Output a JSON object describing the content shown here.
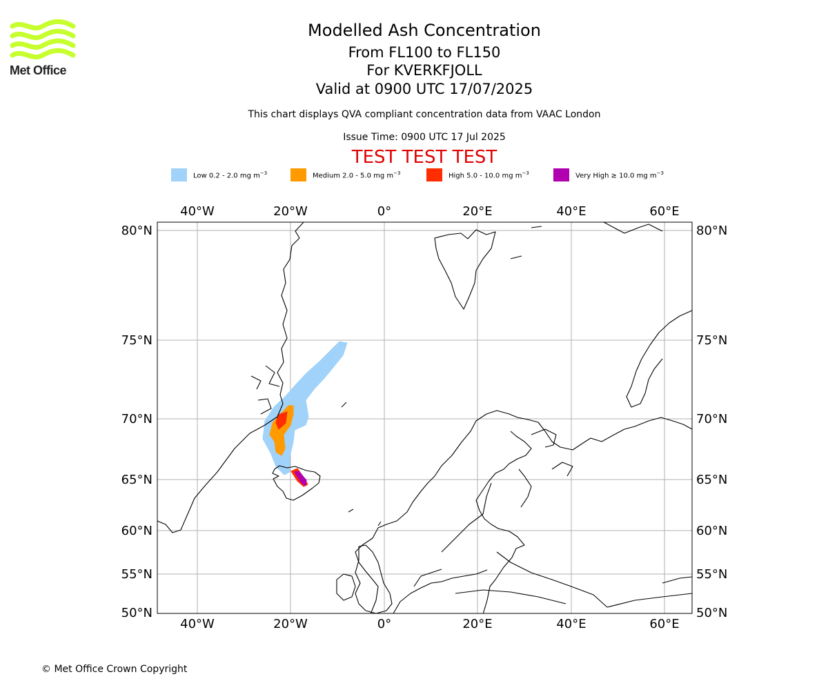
{
  "logo": {
    "text": "Met Office",
    "colors": {
      "waves": "#c6ff2d",
      "text": "#222222"
    }
  },
  "header": {
    "title": "Modelled Ash Concentration",
    "levels": "From FL100 to FL150",
    "volcano": "For KVERKFJOLL",
    "valid": "Valid at 0900 UTC 17/07/2025",
    "disclaimer": "This chart displays QVA compliant concentration data from VAAC London",
    "issue_time": "Issue Time: 0900 UTC 17 Jul 2025",
    "test_banner": "TEST TEST TEST"
  },
  "legend": [
    {
      "label": "Low 0.2 - 2.0 mg m",
      "exp": "−3",
      "color": "#a0d2fa"
    },
    {
      "label": "Medium 2.0 - 5.0 mg m",
      "exp": "−3",
      "color": "#ff9a00"
    },
    {
      "label": "High 5.0 - 10.0 mg m",
      "exp": "−3",
      "color": "#ff2d00"
    },
    {
      "label": "Very High  ≥  10.0 mg m",
      "exp": "−3",
      "color": "#b000b0"
    }
  ],
  "map": {
    "lon_ticks": [
      "40°W",
      "20°W",
      "0°",
      "20°E",
      "40°E",
      "60°E"
    ],
    "lat_ticks": [
      "80°N",
      "75°N",
      "70°N",
      "65°N",
      "60°N",
      "55°N",
      "50°N"
    ],
    "grid_color": "#b0b0b0",
    "coastline_color": "#000000"
  },
  "footer": {
    "copyright": "© Met Office Crown Copyright"
  }
}
